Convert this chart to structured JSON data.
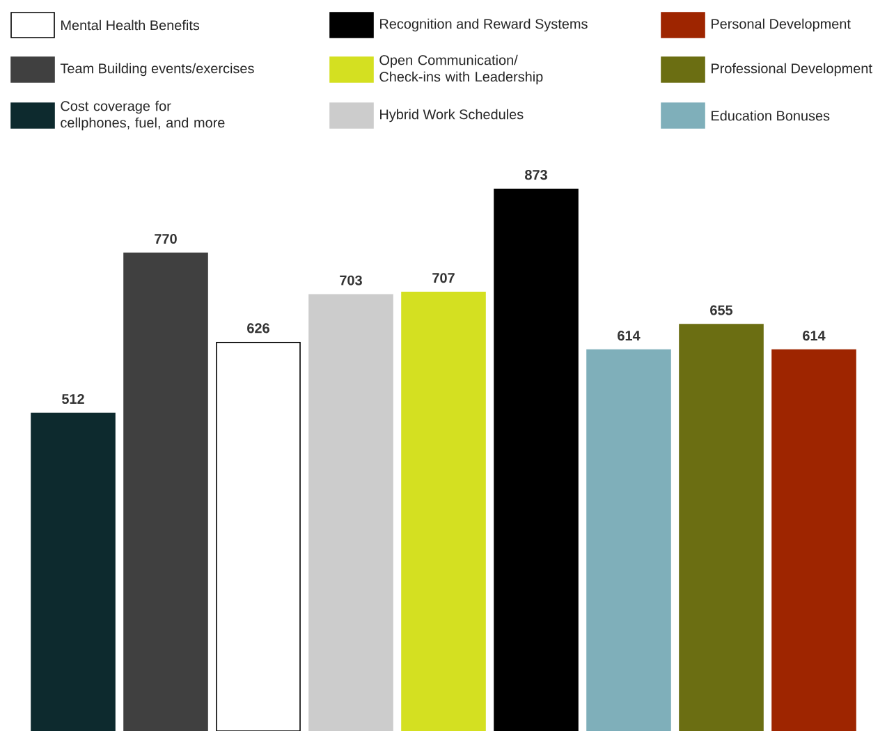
{
  "chart_data": {
    "type": "bar",
    "categories": [
      null
    ],
    "data_labels": true,
    "legend": "top",
    "series": [
      {
        "name": "Cost coverage for cellphones, fuel, and more",
        "color": "#0d2a2e",
        "values": [
          512
        ]
      },
      {
        "name": "Team Building events/exercises",
        "color": "#404040",
        "values": [
          770
        ]
      },
      {
        "name": "Mental Health Benefits",
        "color": "#ffffff",
        "values": [
          626
        ]
      },
      {
        "name": "Hybrid Work Schedules",
        "color": "#cccccc",
        "values": [
          703
        ]
      },
      {
        "name": "Open Communication/ Check-ins with Leadership",
        "color": "#d4e021",
        "values": [
          707
        ]
      },
      {
        "name": "Recognition and Reward Systems",
        "color": "#000000",
        "values": [
          873
        ]
      },
      {
        "name": "Education Bonuses",
        "color": "#7fafba",
        "values": [
          614
        ]
      },
      {
        "name": "Professional Development",
        "color": "#6b6e12",
        "values": [
          655
        ]
      },
      {
        "name": "Personal Development",
        "color": "#9e2500",
        "values": [
          614
        ]
      }
    ]
  }
}
